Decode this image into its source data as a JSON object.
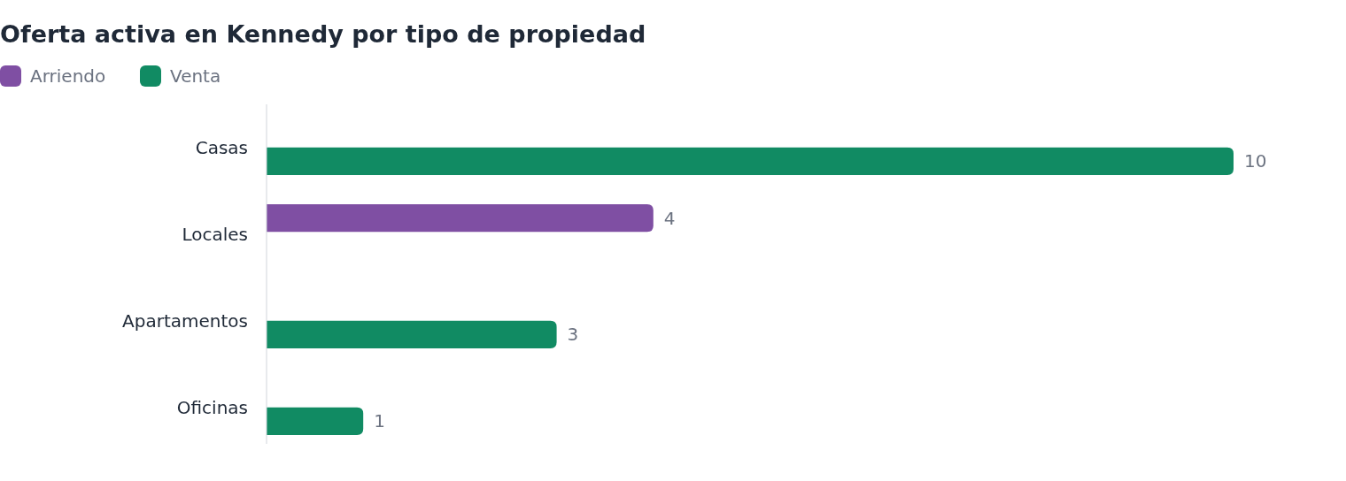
{
  "chart_data": {
    "type": "bar",
    "orientation": "horizontal",
    "title": "Oferta activa en Kennedy por tipo de propiedad",
    "categories": [
      "Casas",
      "Locales",
      "Apartamentos",
      "Oficinas"
    ],
    "series": [
      {
        "name": "Arriendo",
        "color": "#7f4fa3",
        "values": [
          null,
          4,
          null,
          null
        ]
      },
      {
        "name": "Venta",
        "color": "#118b63",
        "values": [
          10,
          null,
          3,
          1
        ]
      }
    ],
    "data_labels": true,
    "legend": "top left"
  }
}
